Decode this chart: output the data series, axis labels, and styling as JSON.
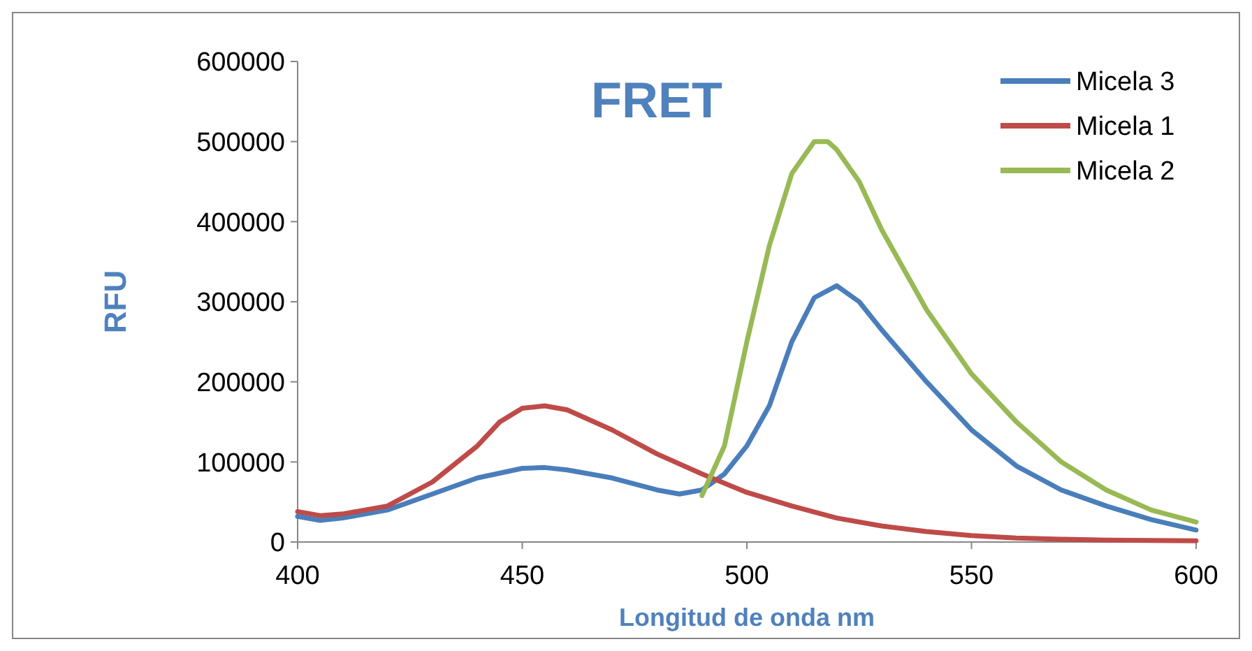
{
  "chart_data": {
    "type": "line",
    "title": "FRET",
    "xlabel": "Longitud de onda nm",
    "ylabel": "RFU",
    "xlim": [
      400,
      600
    ],
    "xticks": [
      400,
      450,
      500,
      550,
      600
    ],
    "ylim": [
      0,
      600000
    ],
    "yticks": [
      0,
      100000,
      200000,
      300000,
      400000,
      500000,
      600000
    ],
    "grid": false,
    "legend": "top right",
    "marker": "none",
    "line_style": "solid",
    "series": [
      {
        "name": "Micela 3",
        "color": "#4a7ebb",
        "x": [
          400,
          405,
          410,
          420,
          430,
          440,
          450,
          455,
          460,
          470,
          480,
          485,
          490,
          495,
          500,
          505,
          510,
          515,
          520,
          525,
          530,
          540,
          550,
          560,
          570,
          580,
          590,
          600
        ],
        "values": [
          32000,
          27000,
          30000,
          40000,
          60000,
          80000,
          92000,
          93000,
          90000,
          80000,
          65000,
          60000,
          65000,
          85000,
          120000,
          170000,
          250000,
          305000,
          320000,
          300000,
          265000,
          200000,
          140000,
          95000,
          65000,
          45000,
          28000,
          15000
        ]
      },
      {
        "name": "Micela 1",
        "color": "#be4b48",
        "x": [
          400,
          405,
          410,
          420,
          430,
          440,
          445,
          450,
          455,
          460,
          470,
          480,
          490,
          500,
          510,
          520,
          530,
          540,
          550,
          560,
          570,
          580,
          600
        ],
        "values": [
          38000,
          33000,
          35000,
          45000,
          75000,
          120000,
          150000,
          167000,
          170000,
          165000,
          140000,
          110000,
          85000,
          62000,
          45000,
          30000,
          20000,
          13000,
          8000,
          5000,
          3500,
          2500,
          1500
        ]
      },
      {
        "name": "Micela 2",
        "color": "#98b954",
        "x": [
          490,
          495,
          500,
          505,
          510,
          515,
          518,
          520,
          525,
          530,
          540,
          550,
          560,
          570,
          580,
          590,
          600
        ],
        "values": [
          58000,
          120000,
          250000,
          370000,
          460000,
          500000,
          500000,
          490000,
          450000,
          390000,
          290000,
          210000,
          150000,
          100000,
          65000,
          40000,
          25000
        ]
      }
    ]
  }
}
